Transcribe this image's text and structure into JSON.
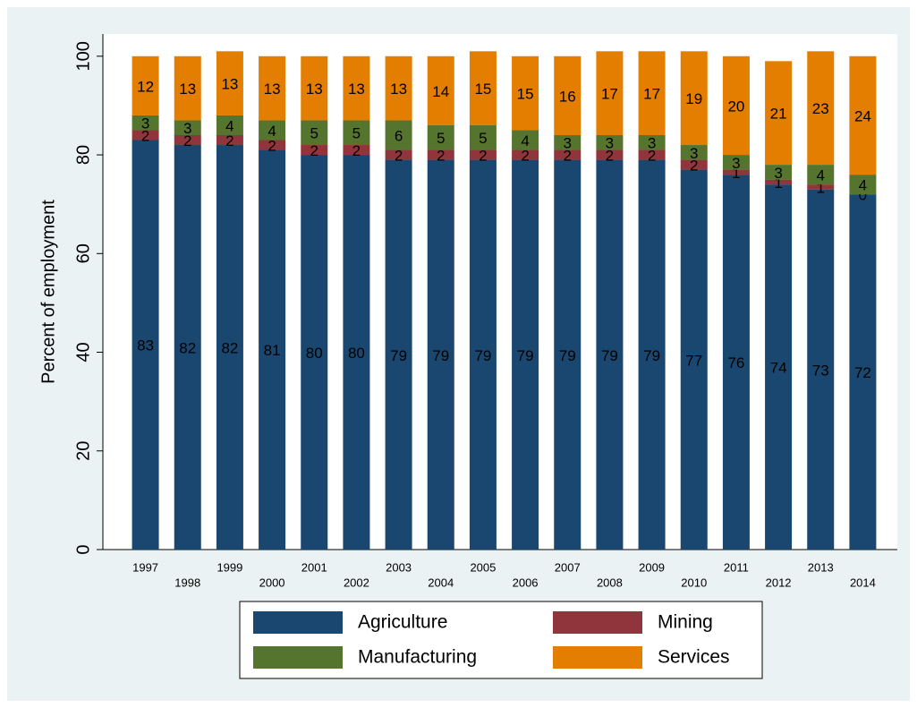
{
  "chart_data": {
    "type": "stacked-bar",
    "y_label": "Percent of employment",
    "categories": [
      "1997",
      "1998",
      "1999",
      "2000",
      "2001",
      "2002",
      "2003",
      "2004",
      "2005",
      "2006",
      "2007",
      "2008",
      "2009",
      "2010",
      "2011",
      "2012",
      "2013",
      "2014"
    ],
    "series": [
      {
        "name": "Agriculture",
        "color": "#1a476f",
        "values": [
          83,
          82,
          82,
          81,
          80,
          80,
          79,
          79,
          79,
          79,
          79,
          79,
          79,
          77,
          76,
          74,
          73,
          72
        ]
      },
      {
        "name": "Mining",
        "color": "#90353b",
        "values": [
          2,
          2,
          2,
          2,
          2,
          2,
          2,
          2,
          2,
          2,
          2,
          2,
          2,
          2,
          1,
          1,
          1,
          0
        ]
      },
      {
        "name": "Manufacturing",
        "color": "#55752f",
        "values": [
          3,
          3,
          4,
          4,
          5,
          5,
          6,
          5,
          5,
          4,
          3,
          3,
          3,
          3,
          3,
          3,
          4,
          4
        ]
      },
      {
        "name": "Services",
        "color": "#e37e00",
        "values": [
          12,
          13,
          13,
          13,
          13,
          13,
          13,
          14,
          15,
          15,
          16,
          17,
          17,
          19,
          20,
          21,
          23,
          24
        ]
      }
    ],
    "ylim": [
      0,
      104.5
    ],
    "yticks": [
      0,
      20,
      40,
      60,
      80,
      100
    ]
  }
}
